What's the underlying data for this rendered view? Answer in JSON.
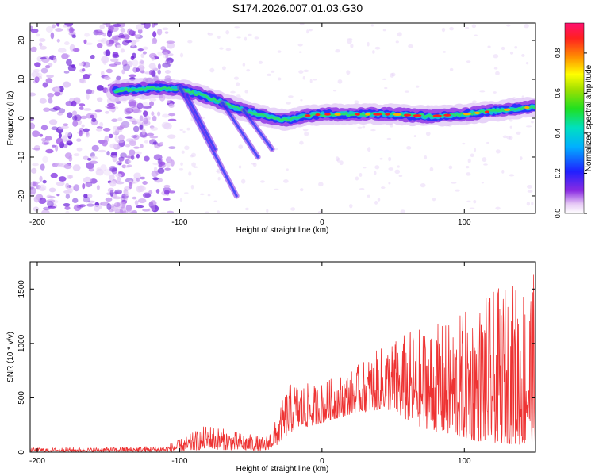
{
  "title": "S174.2026.007.01.03.G30",
  "chart_data": [
    {
      "type": "heatmap",
      "title": "S174.2026.007.01.03.G30",
      "xlabel": "Height of straight line (km)",
      "ylabel": "Frequency (Hz)",
      "xlim": [
        -205,
        150
      ],
      "ylim": [
        -24.5,
        24.5
      ],
      "xticks": [
        -200,
        -100,
        0,
        100
      ],
      "yticks": [
        -20,
        -10,
        0,
        10,
        20
      ],
      "colorbar": {
        "label": "Normalized spectral amplitude",
        "range": [
          0,
          0.95
        ],
        "ticks": [
          0.0,
          0.2,
          0.4,
          0.6,
          0.8
        ]
      },
      "ridge": [
        {
          "x": -145,
          "y": 7.0
        },
        {
          "x": -130,
          "y": 7.5
        },
        {
          "x": -115,
          "y": 7.8
        },
        {
          "x": -100,
          "y": 7.5
        },
        {
          "x": -85,
          "y": 6.0
        },
        {
          "x": -70,
          "y": 4.0
        },
        {
          "x": -55,
          "y": 2.0
        },
        {
          "x": -40,
          "y": 0.5
        },
        {
          "x": -25,
          "y": -0.5
        },
        {
          "x": -15,
          "y": 0.5
        },
        {
          "x": 0,
          "y": 1.0
        },
        {
          "x": 25,
          "y": 1.0
        },
        {
          "x": 50,
          "y": 1.0
        },
        {
          "x": 75,
          "y": 0.5
        },
        {
          "x": 100,
          "y": 1.0
        },
        {
          "x": 125,
          "y": 2.0
        },
        {
          "x": 150,
          "y": 3.0
        }
      ]
    },
    {
      "type": "line",
      "xlabel": "Height of straight line (km)",
      "ylabel": "SNR (10 * v/v)",
      "xlim": [
        -205,
        150
      ],
      "ylim": [
        0,
        1750
      ],
      "xticks": [
        -200,
        -100,
        0,
        100
      ],
      "yticks": [
        0,
        500,
        1000,
        1500
      ],
      "series": [
        {
          "name": "SNR",
          "color": "#ee3333",
          "envelope": [
            {
              "x": -205,
              "lo": 5,
              "hi": 40
            },
            {
              "x": -150,
              "lo": 5,
              "hi": 45
            },
            {
              "x": -110,
              "lo": 5,
              "hi": 60
            },
            {
              "x": -95,
              "lo": 10,
              "hi": 150
            },
            {
              "x": -80,
              "lo": 30,
              "hi": 260
            },
            {
              "x": -65,
              "lo": 20,
              "hi": 200
            },
            {
              "x": -40,
              "lo": 10,
              "hi": 140
            },
            {
              "x": -32,
              "lo": 60,
              "hi": 300
            },
            {
              "x": -25,
              "lo": 150,
              "hi": 600
            },
            {
              "x": -20,
              "lo": 200,
              "hi": 650
            },
            {
              "x": -5,
              "lo": 250,
              "hi": 620
            },
            {
              "x": 20,
              "lo": 350,
              "hi": 750
            },
            {
              "x": 45,
              "lo": 400,
              "hi": 1000
            },
            {
              "x": 65,
              "lo": 250,
              "hi": 1150
            },
            {
              "x": 90,
              "lo": 150,
              "hi": 1200
            },
            {
              "x": 110,
              "lo": 100,
              "hi": 1400
            },
            {
              "x": 130,
              "lo": 80,
              "hi": 1550
            },
            {
              "x": 150,
              "lo": 50,
              "hi": 1650
            }
          ]
        }
      ]
    }
  ]
}
